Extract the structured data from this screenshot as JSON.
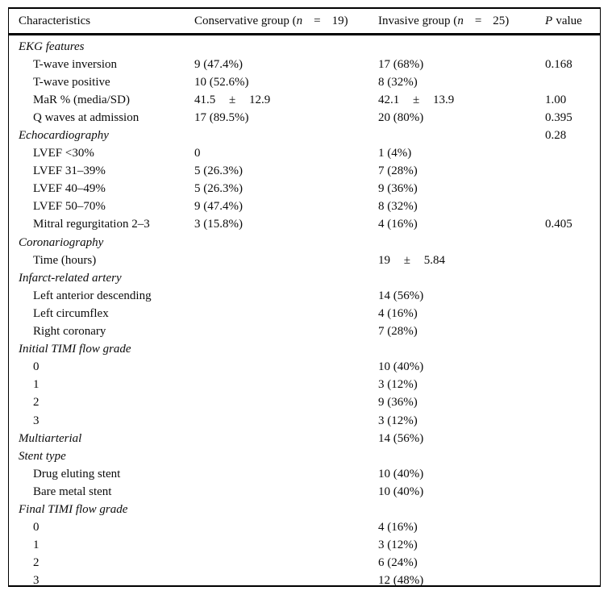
{
  "table": {
    "header": {
      "col1": "Characteristics",
      "col2": {
        "pre": "Conservative group (",
        "var": "n",
        "eq": "=",
        "post": "19)"
      },
      "col3": {
        "pre": "Invasive group (",
        "var": "n",
        "eq": "=",
        "post": "25)"
      },
      "col4": {
        "var": "P",
        "post": "value"
      }
    },
    "rows": [
      {
        "type": "section",
        "label": "EKG features",
        "conservative": "",
        "invasive": "",
        "p": ""
      },
      {
        "type": "item",
        "label": "T-wave inversion",
        "conservative": "9 (47.4%)",
        "invasive": "17 (68%)",
        "p": "0.168"
      },
      {
        "type": "item",
        "label": "T-wave positive",
        "conservative": "10 (52.6%)",
        "invasive": "8 (32%)",
        "p": ""
      },
      {
        "type": "item",
        "label": "MaR % (media/SD)",
        "conservative": "41.5 ± 12.9",
        "invasive": "42.1 ± 13.9",
        "p": "1.00"
      },
      {
        "type": "item",
        "label": "Q waves at admission",
        "conservative": "17 (89.5%)",
        "invasive": "20 (80%)",
        "p": "0.395"
      },
      {
        "type": "section",
        "label": "Echocardiography",
        "conservative": "",
        "invasive": "",
        "p": "0.28"
      },
      {
        "type": "item",
        "label": "LVEF <30%",
        "conservative": "0",
        "invasive": "1 (4%)",
        "p": ""
      },
      {
        "type": "item",
        "label": "LVEF 31–39%",
        "conservative": "5 (26.3%)",
        "invasive": "7 (28%)",
        "p": ""
      },
      {
        "type": "item",
        "label": "LVEF 40–49%",
        "conservative": "5 (26.3%)",
        "invasive": "9 (36%)",
        "p": ""
      },
      {
        "type": "item",
        "label": "LVEF 50–70%",
        "conservative": "9 (47.4%)",
        "invasive": "8 (32%)",
        "p": ""
      },
      {
        "type": "item",
        "label": "Mitral regurgitation 2–3",
        "conservative": "3 (15.8%)",
        "invasive": "4 (16%)",
        "p": "0.405"
      },
      {
        "type": "section",
        "label": "Coronariography",
        "conservative": "",
        "invasive": "",
        "p": ""
      },
      {
        "type": "item",
        "label": "Time (hours)",
        "conservative": "",
        "invasive": "19 ± 5.84",
        "p": ""
      },
      {
        "type": "section",
        "label": "Infarct-related artery",
        "conservative": "",
        "invasive": "",
        "p": ""
      },
      {
        "type": "item",
        "label": "Left anterior descending",
        "conservative": "",
        "invasive": "14 (56%)",
        "p": ""
      },
      {
        "type": "item",
        "label": "Left circumflex",
        "conservative": "",
        "invasive": "4 (16%)",
        "p": ""
      },
      {
        "type": "item",
        "label": "Right coronary",
        "conservative": "",
        "invasive": "7 (28%)",
        "p": ""
      },
      {
        "type": "section",
        "label": "Initial TIMI flow grade",
        "conservative": "",
        "invasive": "",
        "p": ""
      },
      {
        "type": "item",
        "label": "0",
        "conservative": "",
        "invasive": "10 (40%)",
        "p": ""
      },
      {
        "type": "item",
        "label": "1",
        "conservative": "",
        "invasive": "3 (12%)",
        "p": ""
      },
      {
        "type": "item",
        "label": "2",
        "conservative": "",
        "invasive": "9 (36%)",
        "p": ""
      },
      {
        "type": "item",
        "label": "3",
        "conservative": "",
        "invasive": "3 (12%)",
        "p": ""
      },
      {
        "type": "section",
        "label": "Multiarterial",
        "conservative": "",
        "invasive": "14 (56%)",
        "p": ""
      },
      {
        "type": "section",
        "label": "Stent type",
        "conservative": "",
        "invasive": "",
        "p": ""
      },
      {
        "type": "item",
        "label": "Drug eluting stent",
        "conservative": "",
        "invasive": "10 (40%)",
        "p": ""
      },
      {
        "type": "item",
        "label": "Bare metal stent",
        "conservative": "",
        "invasive": "10 (40%)",
        "p": ""
      },
      {
        "type": "section",
        "label": "Final TIMI flow grade",
        "conservative": "",
        "invasive": "",
        "p": ""
      },
      {
        "type": "item",
        "label": "0",
        "conservative": "",
        "invasive": "4 (16%)",
        "p": ""
      },
      {
        "type": "item",
        "label": "1",
        "conservative": "",
        "invasive": "3 (12%)",
        "p": ""
      },
      {
        "type": "item",
        "label": "2",
        "conservative": "",
        "invasive": "6 (24%)",
        "p": ""
      },
      {
        "type": "item",
        "label": "3",
        "conservative": "",
        "invasive": "12 (48%)",
        "p": ""
      }
    ]
  }
}
